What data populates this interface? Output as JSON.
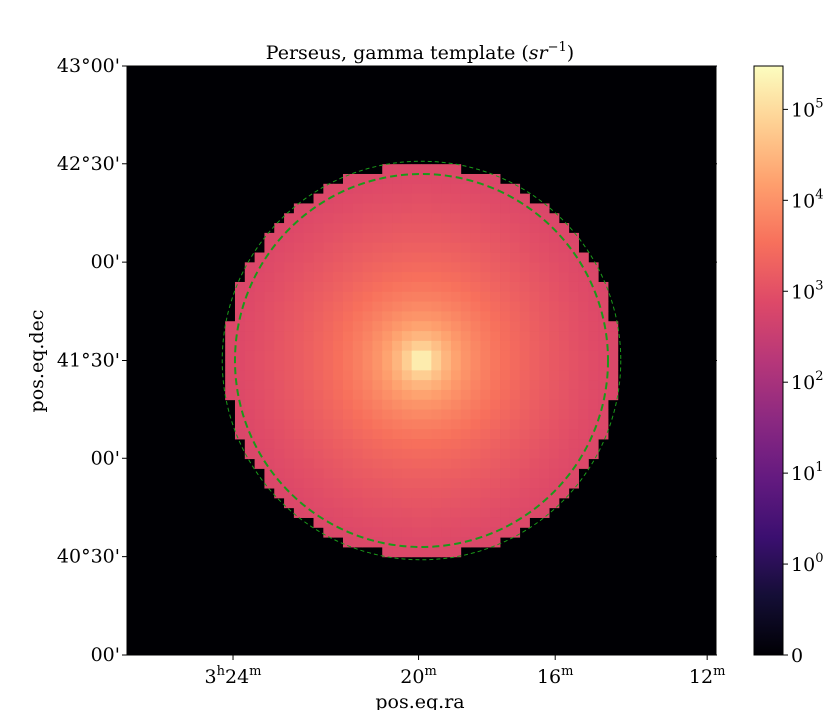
{
  "chart_data": {
    "type": "heatmap",
    "title": "Perseus, gamma template (sr⁻¹)",
    "title_parts": {
      "prefix": "Perseus, gamma template (",
      "unit_base": "sr",
      "unit_exp": "−1",
      "suffix": ")"
    },
    "xlabel": "pos.eq.ra",
    "ylabel": "pos.eq.dec",
    "x_ticks": [
      {
        "pos": 0.18,
        "hour": "3",
        "hsup": "h",
        "min": "24",
        "msup": "m"
      },
      {
        "pos": 0.495,
        "hour": "",
        "hsup": "",
        "min": "20",
        "msup": "m"
      },
      {
        "pos": 0.727,
        "hour": "",
        "hsup": "",
        "min": "16",
        "msup": "m"
      },
      {
        "pos": 0.985,
        "hour": "",
        "hsup": "",
        "min": "12",
        "msup": "m"
      }
    ],
    "y_ticks": [
      {
        "pos": 0.0,
        "label": "43°00'"
      },
      {
        "pos": 0.166,
        "label": "42°30'"
      },
      {
        "pos": 0.333,
        "label": "00'"
      },
      {
        "pos": 0.5,
        "label": "41°30'"
      },
      {
        "pos": 0.666,
        "label": "00'"
      },
      {
        "pos": 0.833,
        "label": "40°30'"
      },
      {
        "pos": 1.0,
        "label": "00'"
      }
    ],
    "colorbar": {
      "scale": "symlog",
      "cmap": "magma",
      "range": [
        0,
        300000
      ],
      "ticks": [
        {
          "value": 0,
          "base": "0",
          "exp": ""
        },
        {
          "value": 1,
          "base": "10",
          "exp": "0"
        },
        {
          "value": 10,
          "base": "10",
          "exp": "1"
        },
        {
          "value": 100,
          "base": "10",
          "exp": "2"
        },
        {
          "value": 1000,
          "base": "10",
          "exp": "3"
        },
        {
          "value": 10000,
          "base": "10",
          "exp": "4"
        },
        {
          "value": 100000,
          "base": "10",
          "exp": "5"
        }
      ]
    },
    "template": {
      "grid_cells": 60,
      "center": [
        30,
        30
      ],
      "disk_radius_cells": 20,
      "peak_value": 300000,
      "core_radius_cells": 0.8,
      "slope": 1.9,
      "edge_value": 3,
      "outside_value": 0
    },
    "contour_circles": [
      {
        "radius_cells": 20.3,
        "style": "dashed-thin",
        "color": "#1a9a1a"
      },
      {
        "radius_cells": 19.0,
        "style": "dashed-thick",
        "color": "#1a9a1a"
      }
    ]
  }
}
